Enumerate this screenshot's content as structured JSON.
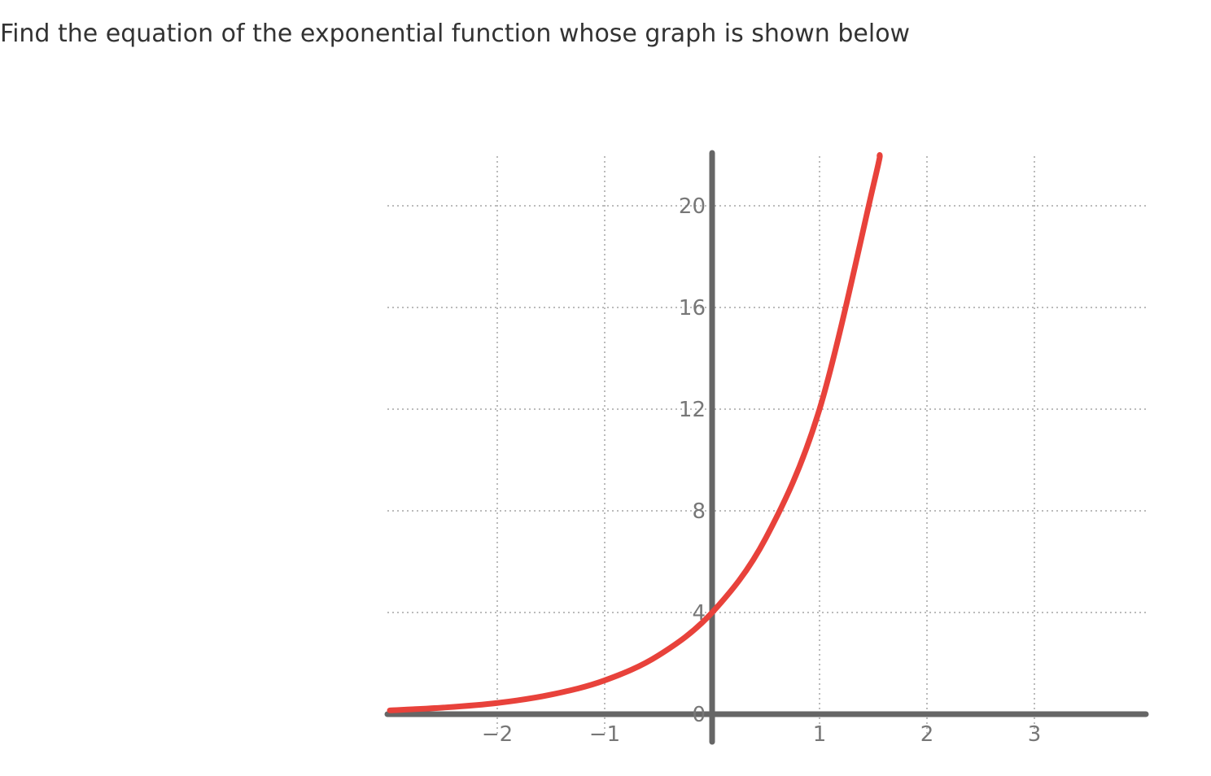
{
  "question": {
    "text": "Find the equation of the exponential function whose graph is shown below"
  },
  "chart_data": {
    "type": "line",
    "title": "",
    "xlabel": "",
    "ylabel": "",
    "xlim": [
      -3,
      4
    ],
    "ylim": [
      0,
      22
    ],
    "x_ticks": [
      -2,
      -1,
      1,
      2,
      3
    ],
    "x_tick_labels": [
      "−2",
      "−1",
      "1",
      "2",
      "3"
    ],
    "y_ticks": [
      0,
      4,
      8,
      12,
      16,
      20
    ],
    "y_tick_labels": [
      "0",
      "4",
      "8",
      "12",
      "16",
      "20"
    ],
    "grid": true,
    "grid_style": "dotted",
    "series": [
      {
        "color": "#e8423b",
        "x": [
          -3.0,
          -2.5,
          -2.0,
          -1.5,
          -1.0,
          -0.5,
          0.0,
          0.5,
          1.0,
          1.5,
          1.56
        ],
        "y": [
          0.15,
          0.26,
          0.44,
          0.77,
          1.33,
          2.31,
          4.0,
          6.93,
          12.0,
          20.78,
          22.0
        ]
      }
    ],
    "colors": {
      "curve": "#e8423b",
      "axes": "#666666",
      "grid": "#bbbbbb",
      "text": "#333333"
    }
  }
}
